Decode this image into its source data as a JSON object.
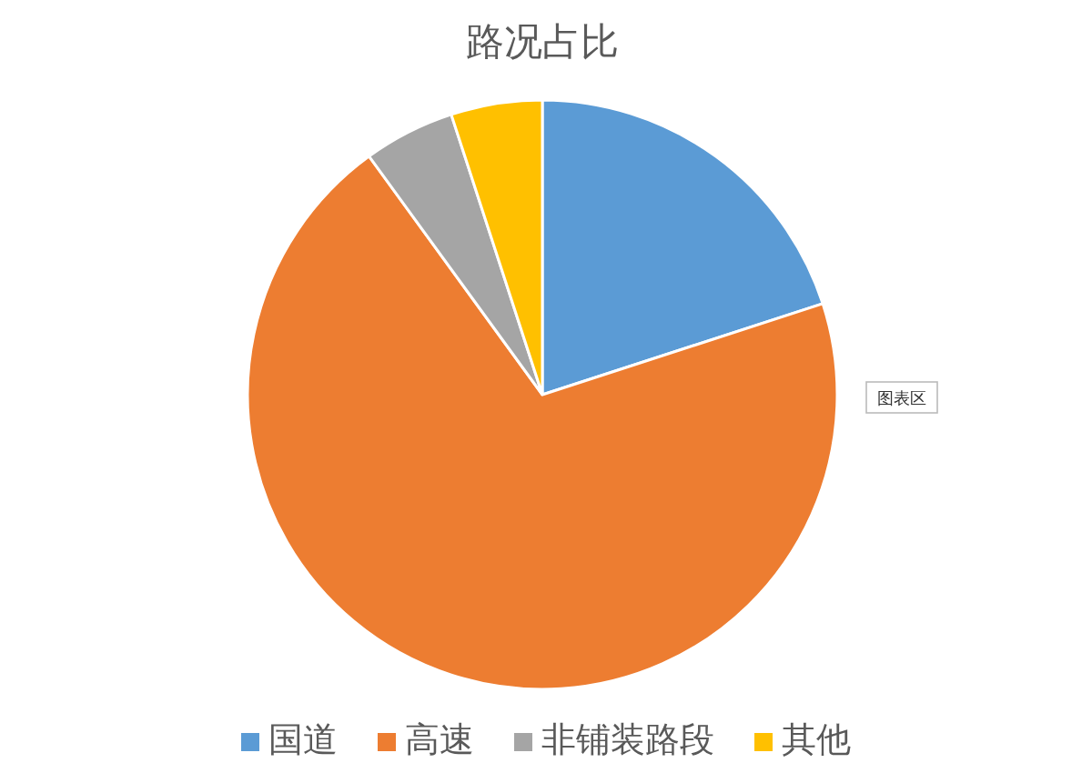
{
  "chart_data": {
    "type": "pie",
    "title": "路况占比",
    "categories": [
      "国道",
      "高速",
      "非铺装路段",
      "其他"
    ],
    "values": [
      20,
      70,
      5,
      5
    ],
    "colors": [
      "#5b9bd5",
      "#ed7d31",
      "#a5a5a5",
      "#ffc000"
    ],
    "legend": "bottom",
    "annotations": [
      "图表区"
    ]
  }
}
